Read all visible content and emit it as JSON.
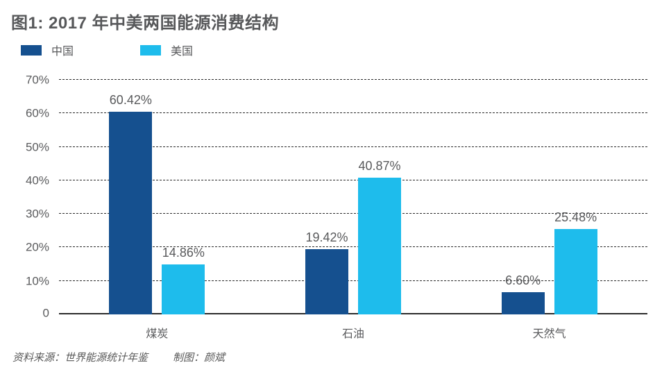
{
  "title": "图1: 2017 年中美两国能源消费结构",
  "legend": [
    {
      "label": "中国",
      "color": "#15508f"
    },
    {
      "label": "美国",
      "color": "#1ebcec"
    }
  ],
  "footer": {
    "source": "资料来源：世界能源统计年鉴",
    "credit": "制图：颜斌"
  },
  "colors": {
    "china_bar": "#15508f",
    "usa_bar": "#1ebcec",
    "text": "#58595b",
    "grid": "#2b2b2b",
    "background": "#ffffff"
  },
  "chart_data": {
    "type": "bar",
    "title": "图1: 2017 年中美两国能源消费结构",
    "categories": [
      "煤炭",
      "石油",
      "天然气"
    ],
    "series": [
      {
        "name": "中国",
        "color": "#15508f",
        "values": [
          60.42,
          19.42,
          6.6
        ],
        "labels": [
          "60.42%",
          "19.42%",
          "6.60%"
        ]
      },
      {
        "name": "美国",
        "color": "#1ebcec",
        "values": [
          14.86,
          40.87,
          25.48
        ],
        "labels": [
          "14.86%",
          "40.87%",
          "25.48%"
        ]
      }
    ],
    "xlabel": "",
    "ylabel": "",
    "ylim": [
      0,
      70
    ],
    "yticks": [
      {
        "value": 70,
        "label": "70%"
      },
      {
        "value": 60,
        "label": "60%"
      },
      {
        "value": 50,
        "label": "50%"
      },
      {
        "value": 40,
        "label": "40%"
      },
      {
        "value": 30,
        "label": "30%"
      },
      {
        "value": 20,
        "label": "20%"
      },
      {
        "value": 10,
        "label": "10%"
      },
      {
        "value": 0,
        "label": "0"
      }
    ],
    "grid": "horizontal-dashed",
    "legend_position": "top-left"
  }
}
